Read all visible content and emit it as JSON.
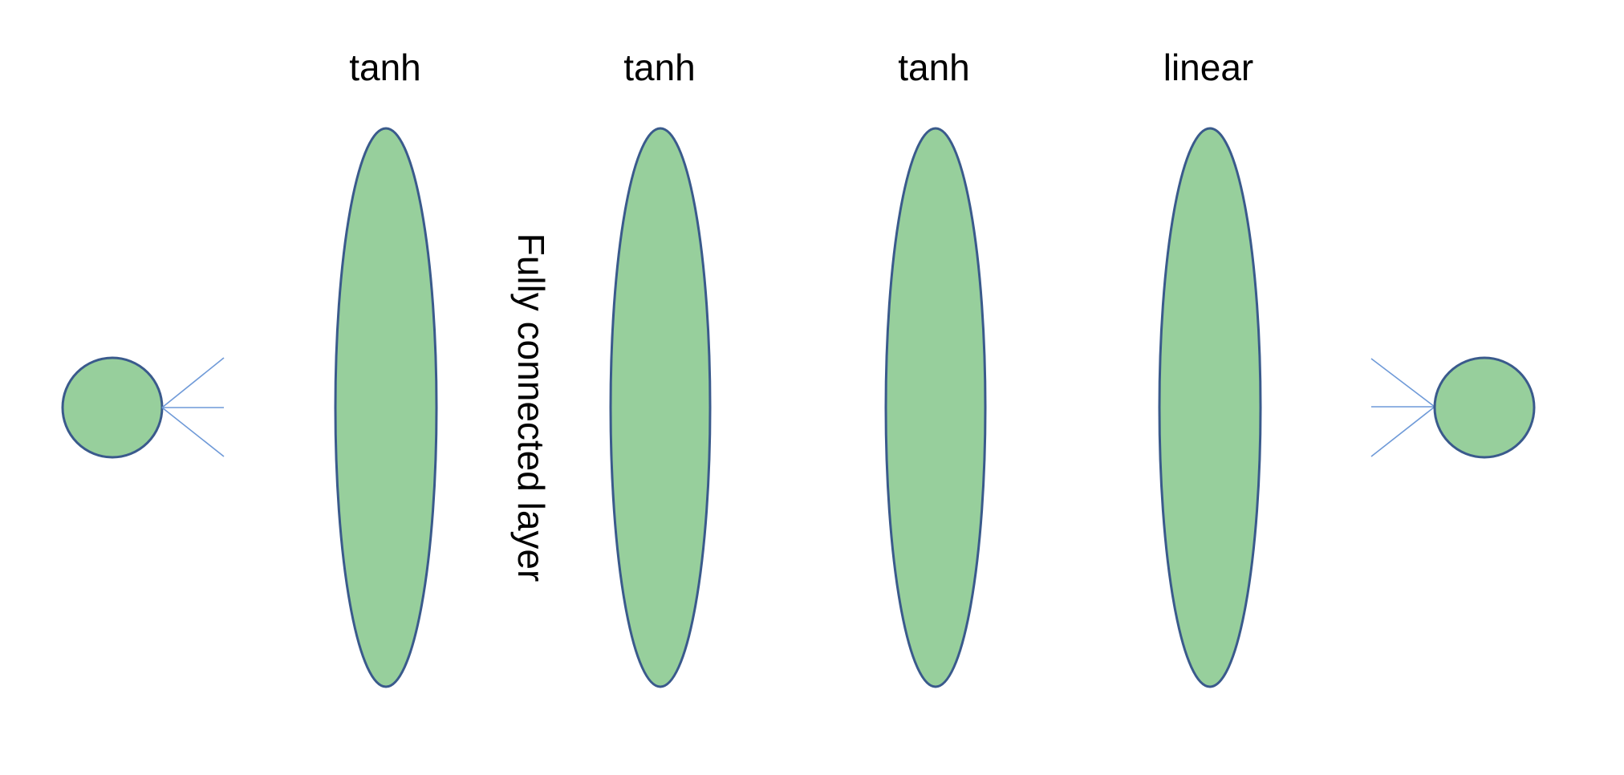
{
  "diagram": {
    "colors": {
      "node_fill": "#97cf9c",
      "node_stroke": "#3a5a8c",
      "connector_stroke": "#6f9ad8",
      "text": "#000000"
    },
    "input_node": {
      "shape": "circle"
    },
    "output_node": {
      "shape": "circle"
    },
    "layers": [
      {
        "activation": "tanh"
      },
      {
        "activation": "tanh"
      },
      {
        "activation": "tanh"
      },
      {
        "activation": "linear"
      }
    ],
    "connection_label": "Fully connected layer"
  }
}
